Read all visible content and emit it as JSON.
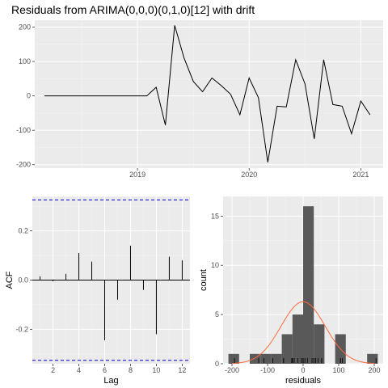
{
  "figure": {
    "title": "Residuals from ARIMA(0,0,0)(0,1,0)[12] with drift"
  },
  "colors": {
    "panel_bg": "#EBEBEB",
    "grid_major": "#FFFFFF",
    "grid_minor": "#F5F5F5",
    "line": "#000000",
    "ci_line": "#0000CC",
    "bar_fill": "#595959",
    "density_curve": "#FF6A3D"
  },
  "chart_data": [
    {
      "type": "line",
      "title": "Residuals from ARIMA(0,0,0)(0,1,0)[12] with drift",
      "x_ticks": [
        2019,
        2020,
        2021
      ],
      "y_ticks": [
        -200,
        -100,
        0,
        100,
        200
      ],
      "xlim": [
        2018.08,
        2021.2
      ],
      "ylim": [
        -210,
        220
      ],
      "grid": true,
      "series": [
        {
          "x": [
            2018.167,
            2018.25,
            2018.333,
            2018.417,
            2018.5,
            2018.583,
            2018.667,
            2018.75,
            2018.833,
            2018.917,
            2019.0,
            2019.083,
            2019.167,
            2019.25,
            2019.333,
            2019.417,
            2019.5,
            2019.583,
            2019.667,
            2019.75,
            2019.833,
            2019.917,
            2020.0,
            2020.083,
            2020.167,
            2020.25,
            2020.333,
            2020.417,
            2020.5,
            2020.583,
            2020.667,
            2020.75,
            2020.833,
            2020.917,
            2021.0,
            2021.083
          ],
          "y": [
            0,
            0,
            0,
            0,
            0,
            0,
            0,
            0,
            0,
            0,
            0,
            0,
            25,
            -85,
            205,
            110,
            42,
            12,
            52,
            30,
            5,
            -55,
            52,
            -5,
            -193,
            -30,
            -32,
            105,
            35,
            -125,
            105,
            -25,
            -30,
            -110,
            -15,
            -55
          ]
        }
      ]
    },
    {
      "type": "bar",
      "subtype": "acf",
      "xlabel": "Lag",
      "ylabel": "ACF",
      "x_ticks": [
        2,
        4,
        6,
        8,
        10,
        12
      ],
      "y_ticks": [
        -0.2,
        0.0,
        0.2
      ],
      "y_tick_labels": [
        "-0.2",
        "0.0",
        "0.2"
      ],
      "xlim": [
        0.4,
        12.6
      ],
      "ylim": [
        -0.34,
        0.34
      ],
      "ci": 0.326,
      "grid": true,
      "series": [
        {
          "lags": [
            1,
            2,
            3,
            4,
            5,
            6,
            7,
            8,
            9,
            10,
            11,
            12
          ],
          "values": [
            0.015,
            -0.005,
            0.025,
            0.11,
            0.075,
            -0.245,
            -0.08,
            0.14,
            -0.04,
            -0.22,
            0.095,
            0.08
          ]
        }
      ]
    },
    {
      "type": "bar",
      "subtype": "histogram",
      "xlabel": "residuals",
      "ylabel": "count",
      "x_ticks": [
        -200,
        -100,
        0,
        100,
        200
      ],
      "y_ticks": [
        0,
        5,
        10,
        15
      ],
      "xlim": [
        -225,
        225
      ],
      "ylim": [
        0,
        17
      ],
      "grid": true,
      "bins": [
        {
          "left": -210,
          "right": -180,
          "count": 1
        },
        {
          "left": -180,
          "right": -150,
          "count": 0
        },
        {
          "left": -150,
          "right": -120,
          "count": 1
        },
        {
          "left": -120,
          "right": -90,
          "count": 1
        },
        {
          "left": -90,
          "right": -60,
          "count": 1
        },
        {
          "left": -60,
          "right": -30,
          "count": 3
        },
        {
          "left": -30,
          "right": 0,
          "count": 5
        },
        {
          "left": 0,
          "right": 30,
          "count": 16
        },
        {
          "left": 30,
          "right": 60,
          "count": 4
        },
        {
          "left": 60,
          "right": 90,
          "count": 0
        },
        {
          "left": 90,
          "right": 120,
          "count": 3
        },
        {
          "left": 120,
          "right": 150,
          "count": 0
        },
        {
          "left": 150,
          "right": 180,
          "count": 0
        },
        {
          "left": 180,
          "right": 210,
          "count": 1
        }
      ],
      "rug": [
        -193,
        -125,
        -110,
        -85,
        -55,
        -55,
        -32,
        -30,
        -30,
        -25,
        -15,
        -5,
        0,
        0,
        0,
        0,
        0,
        0,
        0,
        0,
        0,
        0,
        0,
        0,
        5,
        12,
        25,
        30,
        35,
        42,
        52,
        52,
        105,
        105,
        110,
        205
      ],
      "density": {
        "mean": 0,
        "sd": 62,
        "scale": 6.3
      }
    }
  ]
}
